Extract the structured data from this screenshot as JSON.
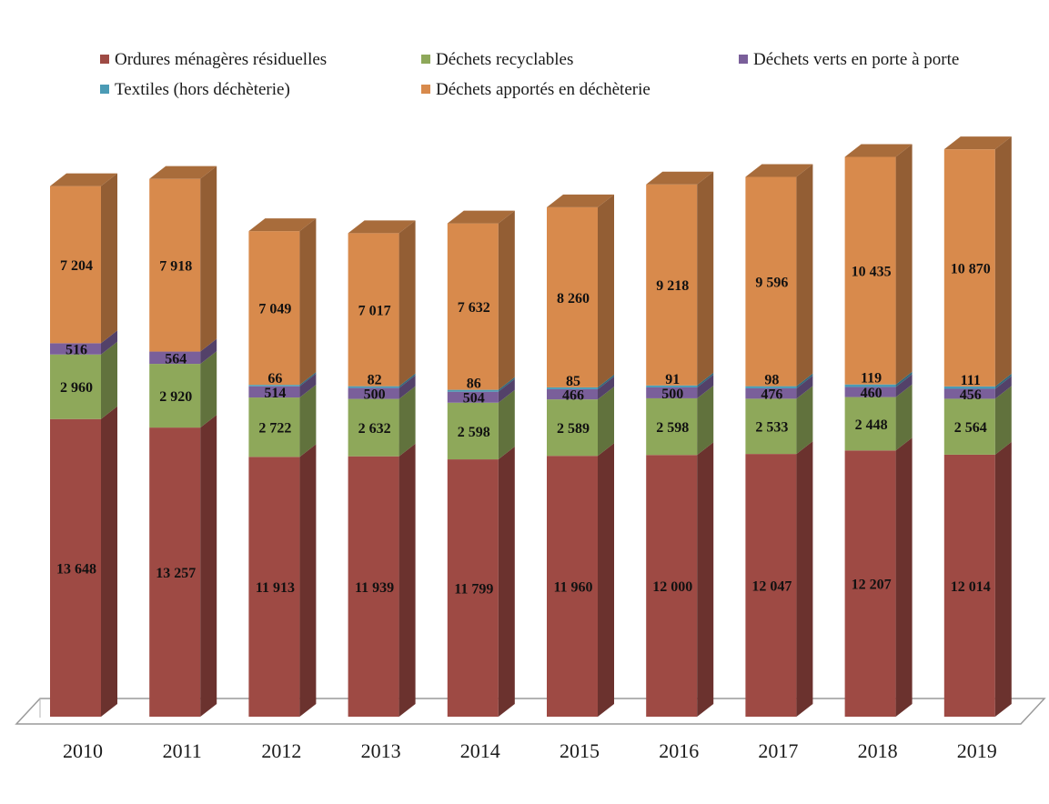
{
  "chart_data": {
    "type": "bar",
    "stacked": true,
    "three_d": true,
    "categories": [
      "2010",
      "2011",
      "2012",
      "2013",
      "2014",
      "2015",
      "2016",
      "2017",
      "2018",
      "2019"
    ],
    "series": [
      {
        "name": "Ordures ménagères résiduelles",
        "color": "#9e4a44",
        "values": [
          13648,
          13257,
          11913,
          11939,
          11799,
          11960,
          12000,
          12047,
          12207,
          12014
        ],
        "labels": [
          "13 648",
          "13 257",
          "11 913",
          "11 939",
          "11 799",
          "11 960",
          "12 000",
          "12 047",
          "12 207",
          "12 014"
        ]
      },
      {
        "name": "Déchets recyclables",
        "color": "#8ea85a",
        "values": [
          2960,
          2920,
          2722,
          2632,
          2598,
          2589,
          2598,
          2533,
          2448,
          2564
        ],
        "labels": [
          "2 960",
          "2 920",
          "2 722",
          "2 632",
          "2 598",
          "2 589",
          "2 598",
          "2 533",
          "2 448",
          "2 564"
        ]
      },
      {
        "name": "Déchets verts en porte à porte",
        "color": "#7a5f9a",
        "values": [
          516,
          564,
          514,
          500,
          504,
          466,
          500,
          476,
          460,
          456
        ],
        "labels": [
          "516",
          "564",
          "514",
          "500",
          "504",
          "466",
          "500",
          "476",
          "460",
          "456"
        ]
      },
      {
        "name": "Textiles (hors déchèterie)",
        "color": "#4b9bb5",
        "values": [
          0,
          0,
          66,
          82,
          86,
          85,
          91,
          98,
          119,
          111
        ],
        "labels": [
          "",
          "",
          "66",
          "82",
          "86",
          "85",
          "91",
          "98",
          "119",
          "111"
        ]
      },
      {
        "name": "Déchets apportés en déchèterie",
        "color": "#d88a4c",
        "values": [
          7204,
          7918,
          7049,
          7017,
          7632,
          8260,
          9218,
          9596,
          10435,
          10870
        ],
        "labels": [
          "7 204",
          "7 918",
          "7 049",
          "7 017",
          "7 632",
          "8 260",
          "9 218",
          "9 596",
          "10 435",
          "10 870"
        ]
      }
    ],
    "legend_position": "top",
    "grid": false
  }
}
